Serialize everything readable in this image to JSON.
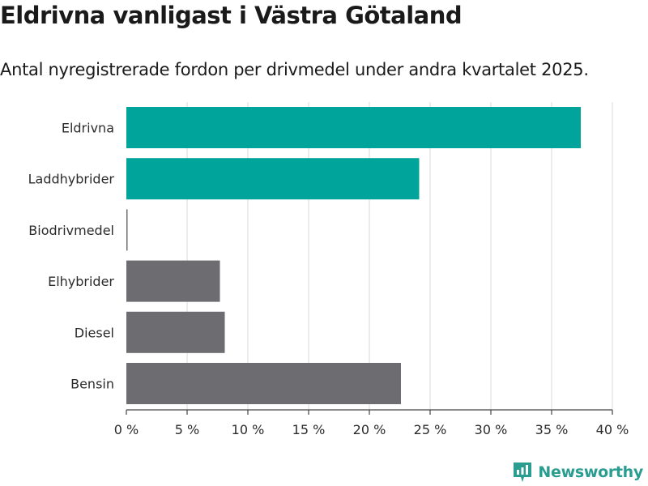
{
  "title": "Eldrivna vanligast i Västra Götaland",
  "subtitle": "Antal nyregistrerade fordon per drivmedel under andra kvartalet 2025.",
  "brand": "Newsworthy",
  "colors": {
    "highlight": "#00a49a",
    "muted": "#6d6c71",
    "grid": "#d9d9d9",
    "brand": "#2a9d91"
  },
  "chart_data": {
    "type": "bar",
    "orientation": "horizontal",
    "categories": [
      "Eldrivna",
      "Laddhybrider",
      "Biodrivmedel",
      "Elhybrider",
      "Diesel",
      "Bensin"
    ],
    "values": [
      37.4,
      24.1,
      0.1,
      7.7,
      8.1,
      22.6
    ],
    "highlighted": [
      true,
      true,
      false,
      false,
      false,
      false
    ],
    "xlim": [
      0,
      40
    ],
    "xticks": [
      0,
      5,
      10,
      15,
      20,
      25,
      30,
      35,
      40
    ],
    "tick_labels": [
      "0 %",
      "5 %",
      "10 %",
      "15 %",
      "20 %",
      "25 %",
      "30 %",
      "35 %",
      "40 %"
    ],
    "grid": true,
    "xlabel": "",
    "ylabel": ""
  }
}
